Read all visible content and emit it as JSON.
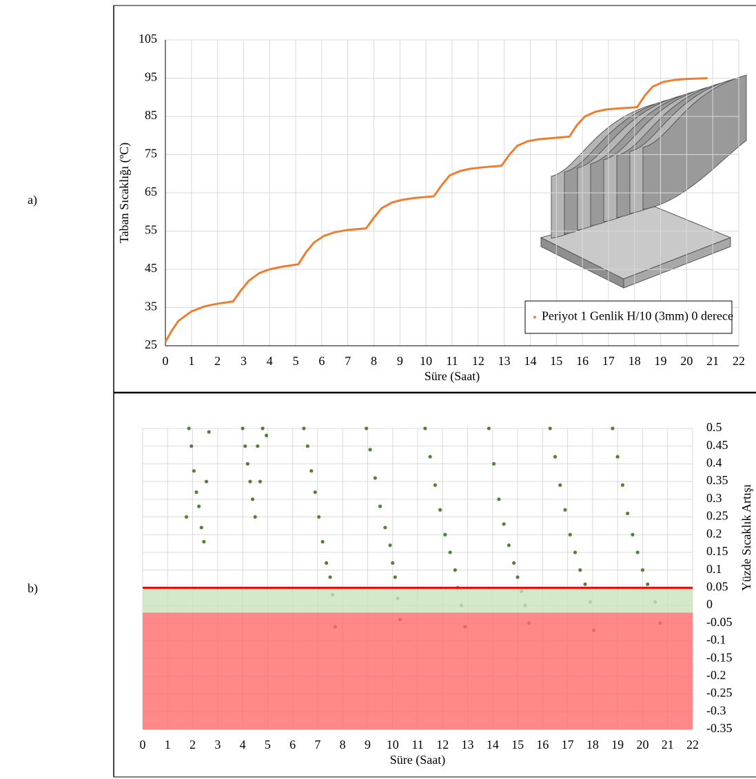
{
  "chart_data": [
    {
      "type": "line",
      "panel_label": "a)",
      "ylabel": "Taban Sıcaklığı (ºC)",
      "xlabel": "Süre (Saat)",
      "x": [
        0,
        0.25,
        0.5,
        1,
        1.5,
        2,
        2.6,
        2.9,
        3.2,
        3.6,
        4,
        4.5,
        5.1,
        5.4,
        5.7,
        6.1,
        6.5,
        7,
        7.7,
        8,
        8.3,
        8.7,
        9.1,
        9.6,
        10.3,
        10.6,
        10.9,
        11.3,
        11.7,
        12.2,
        12.9,
        13.2,
        13.5,
        13.9,
        14.3,
        14.8,
        15.5,
        15.8,
        16.1,
        16.5,
        16.9,
        17.4,
        18.1,
        18.4,
        18.7,
        19.1,
        19.5,
        20,
        20.8
      ],
      "series": [
        {
          "name": "Periyot 1 Genlik H/10 (3mm) 0 derece",
          "color": "#ed7d31",
          "values": [
            26,
            29,
            31.5,
            34,
            35.3,
            36,
            36.6,
            39.5,
            42,
            44,
            45,
            45.7,
            46.3,
            49.5,
            52,
            53.8,
            54.7,
            55.3,
            55.7,
            58.5,
            61,
            62.5,
            63.2,
            63.7,
            64.1,
            67,
            69.5,
            70.7,
            71.3,
            71.7,
            72.1,
            75,
            77.3,
            78.5,
            79,
            79.3,
            79.7,
            82.8,
            85,
            86.2,
            86.8,
            87.1,
            87.4,
            90.5,
            92.8,
            94,
            94.5,
            94.8,
            95
          ]
        }
      ],
      "xlim": [
        0,
        22
      ],
      "xticks": [
        0,
        1,
        2,
        3,
        4,
        5,
        6,
        7,
        8,
        9,
        10,
        11,
        12,
        13,
        14,
        15,
        16,
        17,
        18,
        19,
        20,
        21,
        22
      ],
      "ylim": [
        25,
        105
      ],
      "yticks": [
        25,
        35,
        45,
        55,
        65,
        75,
        85,
        95,
        105
      ],
      "grid": true
    },
    {
      "type": "scatter",
      "panel_label": "b)",
      "ylabel": "Yüzde  Sıcaklık Artışı",
      "xlabel": "Süre (Saat)",
      "color": "#548235",
      "x": [
        1.75,
        1.85,
        1.95,
        2.05,
        2.15,
        2.25,
        2.35,
        2.45,
        2.55,
        2.65,
        4.0,
        4.1,
        4.2,
        4.3,
        4.4,
        4.5,
        4.6,
        4.7,
        4.8,
        4.95,
        6.45,
        6.6,
        6.75,
        6.9,
        7.05,
        7.2,
        7.35,
        7.5,
        7.6,
        7.7,
        8.95,
        9.1,
        9.3,
        9.5,
        9.7,
        9.9,
        10.0,
        10.1,
        10.2,
        10.3,
        11.3,
        11.5,
        11.7,
        11.9,
        12.1,
        12.3,
        12.5,
        12.6,
        12.75,
        12.9,
        13.85,
        14.05,
        14.25,
        14.45,
        14.65,
        14.85,
        15.0,
        15.15,
        15.3,
        15.45,
        16.3,
        16.5,
        16.7,
        16.9,
        17.1,
        17.3,
        17.5,
        17.7,
        17.9,
        18.05,
        18.8,
        19.0,
        19.2,
        19.4,
        19.6,
        19.8,
        20.0,
        20.2,
        20.5,
        20.7
      ],
      "values": [
        0.25,
        0.5,
        0.45,
        0.38,
        0.32,
        0.28,
        0.22,
        0.18,
        0.35,
        0.49,
        0.5,
        0.45,
        0.4,
        0.35,
        0.3,
        0.25,
        0.45,
        0.35,
        0.5,
        0.48,
        0.5,
        0.45,
        0.38,
        0.32,
        0.25,
        0.18,
        0.12,
        0.08,
        0.03,
        -0.06,
        0.5,
        0.44,
        0.36,
        0.28,
        0.22,
        0.17,
        0.12,
        0.08,
        0.02,
        -0.04,
        0.5,
        0.42,
        0.34,
        0.27,
        0.2,
        0.15,
        0.1,
        0.05,
        0.0,
        -0.06,
        0.5,
        0.4,
        0.3,
        0.23,
        0.17,
        0.12,
        0.08,
        0.04,
        0.0,
        -0.05,
        0.5,
        0.42,
        0.34,
        0.27,
        0.2,
        0.15,
        0.1,
        0.06,
        0.01,
        -0.07,
        0.5,
        0.42,
        0.34,
        0.26,
        0.2,
        0.15,
        0.1,
        0.06,
        0.01,
        -0.05
      ],
      "threshold": {
        "value": 0.05,
        "color": "#ff0000"
      },
      "bands": [
        {
          "range": [
            -0.02,
            0.05
          ],
          "color": "#c9e2bd"
        },
        {
          "range": [
            -0.35,
            -0.02
          ],
          "color": "#ff6b6b"
        }
      ],
      "xlim": [
        0,
        22
      ],
      "xticks": [
        0,
        1,
        2,
        3,
        4,
        5,
        6,
        7,
        8,
        9,
        10,
        11,
        12,
        13,
        14,
        15,
        16,
        17,
        18,
        19,
        20,
        21,
        22
      ],
      "ylim": [
        -0.35,
        0.5
      ],
      "yticks": [
        -0.35,
        -0.3,
        -0.25,
        -0.2,
        -0.15,
        -0.1,
        -0.05,
        0,
        0.05,
        0.1,
        0.15,
        0.2,
        0.25,
        0.3,
        0.35,
        0.4,
        0.45,
        0.5
      ],
      "grid": true
    }
  ]
}
